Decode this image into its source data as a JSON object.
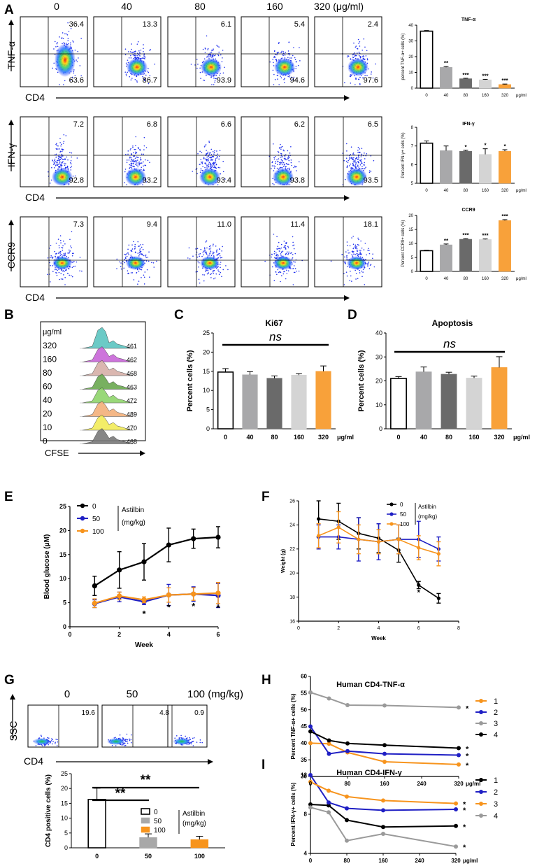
{
  "panel_letters": [
    "A",
    "B",
    "C",
    "D",
    "E",
    "F",
    "G",
    "H",
    "I"
  ],
  "colors": {
    "c0": "#ffffff",
    "c40": "#a8a8aa",
    "c80": "#6a6a6a",
    "c160": "#d4d4d4",
    "c320": "#f8a13a",
    "orange": "#f7941d",
    "blue": "#1f1fc4",
    "grey": "#9a9a9a",
    "black": "#000000"
  },
  "panelA": {
    "dose_headers": [
      "0",
      "40",
      "80",
      "160",
      "320 (μg/ml)"
    ],
    "x_label": "CD4",
    "rows": [
      {
        "y_label": "TNF-α",
        "upper": [
          "36.4",
          "13.3",
          "6.1",
          "5.4",
          "2.4"
        ],
        "lower": [
          "63.6",
          "86.7",
          "93.9",
          "94.6",
          "97.6"
        ]
      },
      {
        "y_label": "IFN-γ",
        "upper": [
          "7.2",
          "6.8",
          "6.6",
          "6.2",
          "6.5"
        ],
        "lower": [
          "92.8",
          "93.2",
          "93.4",
          "93.8",
          "93.5"
        ]
      },
      {
        "y_label": "CCR9",
        "upper": [
          "7.3",
          "9.4",
          "11.0",
          "11.4",
          "18.1"
        ],
        "lower": []
      }
    ]
  },
  "panelB": {
    "unit": "μg/ml",
    "doses": [
      "320",
      "160",
      "80",
      "60",
      "40",
      "20",
      "10",
      "0"
    ],
    "mfi": [
      "461",
      "462",
      "468",
      "463",
      "472",
      "489",
      "470",
      "468"
    ],
    "fill_colors": [
      "#5cc5c0",
      "#c866d8",
      "#d6b0a8",
      "#6aa84f",
      "#8fd46b",
      "#f3b07a",
      "#f2ec58",
      "#7a7a7a"
    ],
    "x_label": "CFSE"
  },
  "chart_data": [
    {
      "id": "A_tnf",
      "type": "bar",
      "title": "TNF-α",
      "ylabel": "percent TNF-α+ cells (%)",
      "categories": [
        "0",
        "40",
        "80",
        "160",
        "320"
      ],
      "unit_label": "μg/ml",
      "values": [
        36.2,
        13.2,
        6.0,
        5.3,
        2.3
      ],
      "errors": [
        0.4,
        0.5,
        0.3,
        0.3,
        0.3
      ],
      "significance": [
        "",
        "**",
        "***",
        "***",
        "***"
      ],
      "ylim": [
        0,
        40
      ],
      "yticks": [
        "0",
        "10",
        "20",
        "30",
        "40"
      ]
    },
    {
      "id": "A_ifn",
      "type": "bar",
      "title": "IFN-γ",
      "ylabel": "Percent IFN-γ+ cells (%)",
      "categories": [
        "0",
        "40",
        "80",
        "160",
        "320"
      ],
      "unit_label": "μg/ml",
      "values": [
        7.15,
        6.75,
        6.72,
        6.55,
        6.72
      ],
      "errors": [
        0.12,
        0.25,
        0.05,
        0.3,
        0.08
      ],
      "significance": [
        "",
        "",
        "*",
        "*",
        "*"
      ],
      "ylim": [
        5,
        8
      ],
      "yticks": [
        "5",
        "6",
        "7",
        "8"
      ]
    },
    {
      "id": "A_ccr9",
      "type": "bar",
      "title": "CCR9",
      "ylabel": "Percent CCR9+ cells (%)",
      "categories": [
        "0",
        "40",
        "80",
        "160",
        "320"
      ],
      "unit_label": "μg/ml",
      "values": [
        7.4,
        9.5,
        11.5,
        11.4,
        18.2
      ],
      "errors": [
        0.2,
        0.3,
        0.2,
        0.2,
        0.3
      ],
      "significance": [
        "",
        "**",
        "***",
        "***",
        "***"
      ],
      "ylim": [
        0,
        20
      ],
      "yticks": [
        "0",
        "5",
        "10",
        "15",
        "20"
      ]
    },
    {
      "id": "C",
      "type": "bar",
      "title": "Ki67",
      "ylabel": "Percent cells (%)",
      "categories": [
        "0",
        "40",
        "80",
        "160",
        "320"
      ],
      "unit_label": "μg/ml",
      "values": [
        14.8,
        14.1,
        13.2,
        14.0,
        15.0
      ],
      "errors": [
        0.9,
        0.8,
        0.6,
        0.4,
        1.4
      ],
      "significance_label": "ns",
      "ylim": [
        0,
        25
      ],
      "yticks": [
        "0",
        "5",
        "10",
        "15",
        "20",
        "25"
      ]
    },
    {
      "id": "D",
      "type": "bar",
      "title": "Apoptosis",
      "ylabel": "Percent cells (%)",
      "categories": [
        "0",
        "40",
        "80",
        "160",
        "320"
      ],
      "unit_label": "μg/ml",
      "values": [
        21.0,
        23.8,
        22.8,
        21.2,
        25.6
      ],
      "errors": [
        0.8,
        2.0,
        0.8,
        0.8,
        4.5
      ],
      "significance_label": "ns",
      "ylim": [
        0,
        40
      ],
      "yticks": [
        "0",
        "10",
        "20",
        "30",
        "40"
      ]
    },
    {
      "id": "E",
      "type": "line",
      "xlabel": "Week",
      "ylabel": "Blood glucose (μM)",
      "x": [
        1,
        2,
        3,
        4,
        5,
        6
      ],
      "xlim": [
        0,
        6
      ],
      "ylim": [
        0,
        25
      ],
      "xticks": [
        "0",
        "2",
        "4",
        "6"
      ],
      "yticks": [
        "0",
        "5",
        "10",
        "15",
        "20",
        "25"
      ],
      "legend_title": "Astilbin (mg/kg)",
      "series": [
        {
          "name": "0",
          "color": "#000000",
          "values": [
            8.5,
            11.8,
            13.5,
            17.0,
            18.3,
            18.6
          ],
          "errors": [
            2.0,
            3.8,
            3.8,
            3.5,
            2.0,
            2.2
          ]
        },
        {
          "name": "50",
          "color": "#1f1fc4",
          "values": [
            4.8,
            6.2,
            5.2,
            6.6,
            6.8,
            6.5
          ],
          "errors": [
            0.8,
            1.0,
            0.6,
            2.2,
            1.5,
            2.5
          ]
        },
        {
          "name": "100",
          "color": "#f7941d",
          "values": [
            4.9,
            6.4,
            5.6,
            6.6,
            6.8,
            7.0
          ],
          "errors": [
            0.9,
            0.8,
            0.6,
            1.5,
            1.3,
            2.2
          ]
        }
      ],
      "star_x": [
        3,
        4,
        5,
        6
      ],
      "star_label": "*"
    },
    {
      "id": "F",
      "type": "line",
      "xlabel": "Week",
      "ylabel": "Weight (g)",
      "x": [
        1,
        2,
        3,
        4,
        5,
        6,
        7
      ],
      "xlim": [
        0,
        8
      ],
      "ylim": [
        16,
        26
      ],
      "xticks": [
        "0",
        "2",
        "4",
        "6",
        "8"
      ],
      "yticks": [
        "16",
        "18",
        "20",
        "22",
        "24",
        "26"
      ],
      "legend_title": "Astilbin (mg/kg)",
      "series": [
        {
          "name": "0",
          "color": "#000000",
          "values": [
            24.5,
            24.3,
            23.3,
            22.9,
            21.9,
            19.0,
            17.9
          ],
          "errors": [
            1.5,
            1.5,
            1.3,
            1.2,
            1.0,
            0.3,
            0.4
          ]
        },
        {
          "name": "50",
          "color": "#1f1fc4",
          "values": [
            23.0,
            23.0,
            22.8,
            22.6,
            22.8,
            22.8,
            22.0
          ],
          "errors": [
            1.0,
            1.0,
            1.8,
            1.5,
            1.2,
            1.5,
            1.0
          ]
        },
        {
          "name": "100",
          "color": "#f7941d",
          "values": [
            23.1,
            23.8,
            22.8,
            22.6,
            22.8,
            22.1,
            21.6
          ],
          "errors": [
            1.0,
            1.3,
            1.2,
            1.0,
            1.2,
            1.0,
            1.0
          ]
        }
      ],
      "star_x": [
        6
      ],
      "star_label": "*"
    },
    {
      "id": "G_bar",
      "type": "bar",
      "ylabel": "CD4 positive cells (%)",
      "categories": [
        "0",
        "50",
        "100"
      ],
      "values": [
        16.3,
        3.5,
        2.8
      ],
      "errors": [
        3.8,
        1.2,
        1.1
      ],
      "ylim": [
        0,
        25
      ],
      "yticks": [
        "0",
        "5",
        "10",
        "15",
        "20",
        "25"
      ],
      "significance": [
        "**",
        "**"
      ],
      "legend_title": "Astilbin (mg/kg)",
      "legend": [
        "0",
        "50",
        "100"
      ]
    },
    {
      "id": "H",
      "type": "line",
      "title": "Human CD4-TNF-α",
      "ylabel": "Percent TNF-α+ cells (%)",
      "x": [
        0,
        40,
        80,
        160,
        320
      ],
      "xlim": [
        0,
        320
      ],
      "ylim": [
        30,
        60
      ],
      "xticks": [
        "0",
        "80",
        "160",
        "240",
        "320"
      ],
      "unit_label": "μg/ml",
      "yticks": [
        "30",
        "35",
        "40",
        "45",
        "50",
        "55",
        "60"
      ],
      "series": [
        {
          "name": "1",
          "color": "#f7941d",
          "values": [
            40.0,
            39.8,
            37.2,
            34.4,
            33.6
          ]
        },
        {
          "name": "2",
          "color": "#1f1fc4",
          "values": [
            45.0,
            36.8,
            37.6,
            36.8,
            36.4
          ]
        },
        {
          "name": "3",
          "color": "#9a9a9a",
          "values": [
            55.2,
            53.4,
            51.4,
            51.3,
            50.7
          ]
        },
        {
          "name": "4",
          "color": "#000000",
          "values": [
            43.5,
            40.8,
            39.9,
            39.4,
            38.5
          ]
        }
      ],
      "star_label": "*"
    },
    {
      "id": "I",
      "type": "line",
      "title": "Human CD4-IFN-γ",
      "ylabel": "Percent IFN-γ+ cells (%)",
      "x": [
        0,
        40,
        80,
        160,
        320
      ],
      "xlim": [
        0,
        320
      ],
      "ylim": [
        4,
        12
      ],
      "xticks": [
        "0",
        "80",
        "160",
        "240",
        "320"
      ],
      "unit_label": "μg/ml",
      "yticks": [
        "4",
        "8",
        "12"
      ],
      "series": [
        {
          "name": "1",
          "color": "#000000",
          "values": [
            9.0,
            8.9,
            7.4,
            6.7,
            6.8
          ]
        },
        {
          "name": "2",
          "color": "#1f1fc4",
          "values": [
            12.0,
            9.2,
            8.6,
            8.4,
            8.5
          ]
        },
        {
          "name": "3",
          "color": "#f7941d",
          "values": [
            11.3,
            10.4,
            9.8,
            9.4,
            9.1
          ]
        },
        {
          "name": "4",
          "color": "#9a9a9a",
          "values": [
            8.7,
            8.2,
            5.3,
            6.0,
            4.7
          ]
        }
      ],
      "star_label": "*"
    }
  ],
  "panelG_flow": {
    "doses": [
      "0",
      "50",
      "100 (mg/kg)"
    ],
    "percent": [
      "19.6",
      "4.8",
      "0.9"
    ],
    "y_label": "SSC",
    "x_label": "CD4"
  }
}
